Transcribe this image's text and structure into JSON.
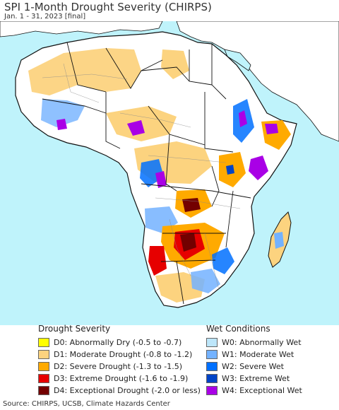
{
  "header": {
    "title": "SPI 1-Month Drought Severity (CHIRPS)",
    "subtitle": "Jan. 1 - 31, 2023 [final]"
  },
  "map": {
    "colors": {
      "ocean": "#bff3fb",
      "land_outside": "#ffffff",
      "country_border": "#111111",
      "admin_border": "#8a8a8a"
    }
  },
  "legend": {
    "drought": {
      "title": "Drought Severity",
      "items": [
        {
          "code": "D0",
          "label": "D0: Abnormally Dry (-0.5 to -0.7)",
          "color": "#ffff00"
        },
        {
          "code": "D1",
          "label": "D1: Moderate Drought (-0.8 to -1.2)",
          "color": "#fcd37f"
        },
        {
          "code": "D2",
          "label": "D2: Severe Drought (-1.3 to -1.5)",
          "color": "#ffaa00"
        },
        {
          "code": "D3",
          "label": "D3: Extreme Drought (-1.6 to -1.9)",
          "color": "#e60000"
        },
        {
          "code": "D4",
          "label": "D4: Exceptional Drought (-2.0 or less)",
          "color": "#730000"
        }
      ]
    },
    "wet": {
      "title": "Wet Conditions",
      "items": [
        {
          "code": "W0",
          "label": "W0: Abnormally Wet",
          "color": "#bde6fa"
        },
        {
          "code": "W1",
          "label": "W1: Moderate Wet",
          "color": "#73b2ff"
        },
        {
          "code": "W2",
          "label": "W2: Severe Wet",
          "color": "#0070ff"
        },
        {
          "code": "W3",
          "label": "W3: Extreme Wet",
          "color": "#0044c7"
        },
        {
          "code": "W4",
          "label": "W4: Exceptional Wet",
          "color": "#a900e6"
        }
      ]
    }
  },
  "footer": {
    "source": "Source: CHIRPS, UCSB, Climate Hazards Center"
  }
}
